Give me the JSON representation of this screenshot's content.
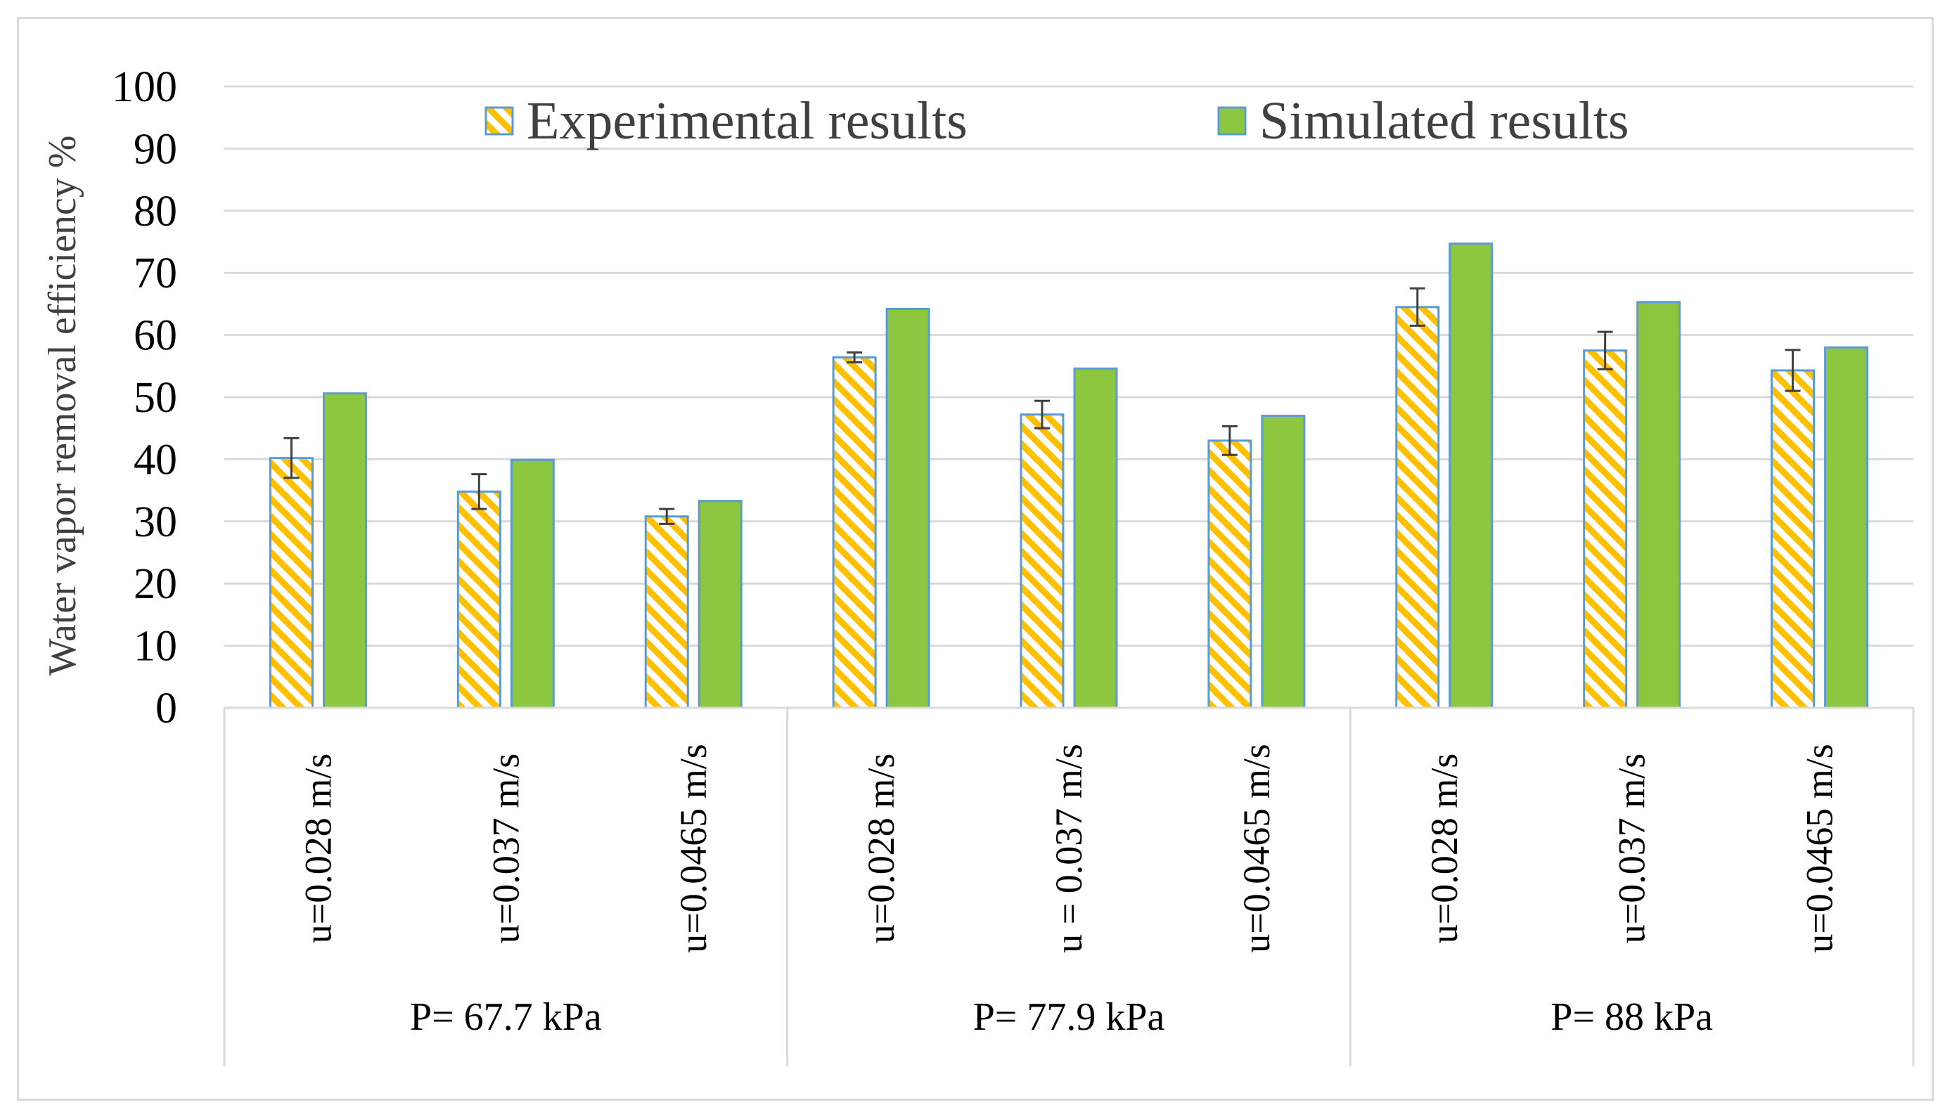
{
  "chart_data": {
    "type": "bar",
    "title": "",
    "ylabel": "Water vapor removal  efficiency  %",
    "xlabel": "",
    "ylim": [
      0,
      100
    ],
    "yticks": [
      0,
      10,
      20,
      30,
      40,
      50,
      60,
      70,
      80,
      90,
      100
    ],
    "grid": true,
    "legend_position": "top",
    "categories": [
      "u=0.028 m/s",
      "u=0.037 m/s",
      "u=0.0465 m/s",
      "u=0.028 m/s",
      "u = 0.037 m/s",
      "u=0.0465 m/s",
      "u=0.028 m/s",
      "u=0.037 m/s",
      "u=0.0465 m/s"
    ],
    "groups": [
      {
        "label": "P= 67.7 kPa",
        "categories": [
          0,
          1,
          2
        ]
      },
      {
        "label": "P= 77.9 kPa",
        "categories": [
          3,
          4,
          5
        ]
      },
      {
        "label": "P= 88 kPa",
        "categories": [
          6,
          7,
          8
        ]
      }
    ],
    "series": [
      {
        "name": "Experimental results",
        "values": [
          40.2,
          34.8,
          30.8,
          56.4,
          47.2,
          43.0,
          64.5,
          57.5,
          54.3
        ],
        "error": [
          3.2,
          2.8,
          1.2,
          0.8,
          2.2,
          2.3,
          3.0,
          3.0,
          3.3
        ],
        "fill": "hatch",
        "hatch_color": "#ffc000",
        "edge_color": "#5b9bd5"
      },
      {
        "name": "Simulated results",
        "values": [
          50.6,
          39.9,
          33.3,
          64.2,
          54.6,
          47.0,
          74.7,
          65.3,
          58.0
        ],
        "fill": "#8dc63f",
        "edge_color": "#5b9bd5"
      }
    ]
  }
}
